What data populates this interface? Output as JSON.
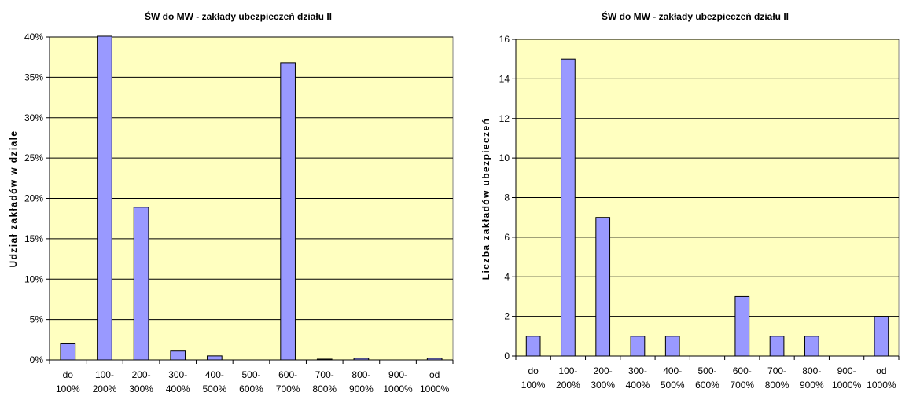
{
  "chart_data": [
    {
      "type": "bar",
      "title": "ŚW do MW - zakłady ubezpieczeń działu II",
      "xlabel": "",
      "ylabel": "Udział zakładów w dziale",
      "categories": [
        [
          "do",
          "100%"
        ],
        [
          "100-",
          "200%"
        ],
        [
          "200-",
          "300%"
        ],
        [
          "300-",
          "400%"
        ],
        [
          "400-",
          "500%"
        ],
        [
          "500-",
          "600%"
        ],
        [
          "600-",
          "700%"
        ],
        [
          "700-",
          "800%"
        ],
        [
          "800-",
          "900%"
        ],
        [
          "900-",
          "1000%"
        ],
        [
          "od",
          "1000%"
        ]
      ],
      "values": [
        2.0,
        40.1,
        18.9,
        1.1,
        0.5,
        0.0,
        36.8,
        0.1,
        0.2,
        0.0,
        0.2
      ],
      "ylim": [
        0,
        40
      ],
      "yticks": [
        0,
        5,
        10,
        15,
        20,
        25,
        30,
        35,
        40
      ],
      "ytick_labels": [
        "0%",
        "5%",
        "10%",
        "15%",
        "20%",
        "25%",
        "30%",
        "35%",
        "40%"
      ],
      "grid": true,
      "plot_bg": "#ffffc0",
      "bar_color": "#9999ff"
    },
    {
      "type": "bar",
      "title": "ŚW do MW - zakłady ubezpieczeń działu II",
      "xlabel": "",
      "ylabel": "Liczba zakładów ubezpieczeń",
      "categories": [
        [
          "do",
          "100%"
        ],
        [
          "100-",
          "200%"
        ],
        [
          "200-",
          "300%"
        ],
        [
          "300-",
          "400%"
        ],
        [
          "400-",
          "500%"
        ],
        [
          "500-",
          "600%"
        ],
        [
          "600-",
          "700%"
        ],
        [
          "700-",
          "800%"
        ],
        [
          "800-",
          "900%"
        ],
        [
          "900-",
          "1000%"
        ],
        [
          "od",
          "1000%"
        ]
      ],
      "values": [
        1,
        15,
        7,
        1,
        1,
        0,
        3,
        1,
        1,
        0,
        2
      ],
      "ylim": [
        0,
        16
      ],
      "yticks": [
        0,
        2,
        4,
        6,
        8,
        10,
        12,
        14,
        16
      ],
      "ytick_labels": [
        "0",
        "2",
        "4",
        "6",
        "8",
        "10",
        "12",
        "14",
        "16"
      ],
      "grid": true,
      "plot_bg": "#ffffc0",
      "bar_color": "#9999ff"
    }
  ]
}
